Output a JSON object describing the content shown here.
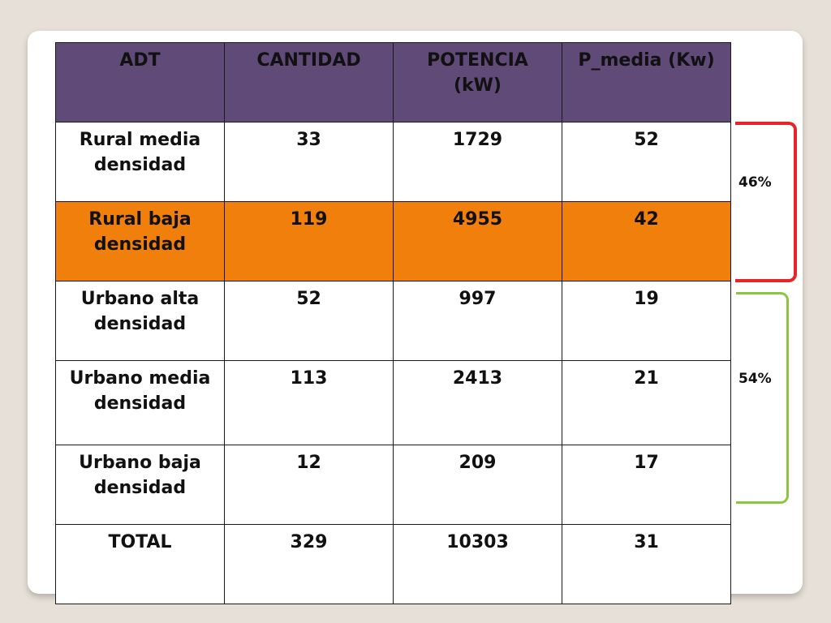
{
  "table": {
    "headers": [
      "ADT",
      "CANTIDAD",
      "POTENCIA (kW)",
      "P_media (Kw)"
    ],
    "rows": [
      [
        "Rural media densidad",
        "33",
        "1729",
        "52"
      ],
      [
        "Rural baja densidad",
        "119",
        "4955",
        "42"
      ],
      [
        "Urbano alta densidad",
        "52",
        "997",
        "19"
      ],
      [
        "Urbano media densidad",
        "113",
        "2413",
        "21"
      ],
      [
        "Urbano baja densidad",
        "12",
        "209",
        "17"
      ],
      [
        "TOTAL",
        "329",
        "10303",
        "31"
      ]
    ],
    "highlighted_row": 1
  },
  "groups": [
    {
      "label": "46%",
      "color": "#e8232a"
    },
    {
      "label": "54%",
      "color": "#8cc63f"
    }
  ],
  "colors": {
    "header_bg": "#5f4a78",
    "highlight_bg": "#f07f0c",
    "background": "#e6e0d8"
  }
}
